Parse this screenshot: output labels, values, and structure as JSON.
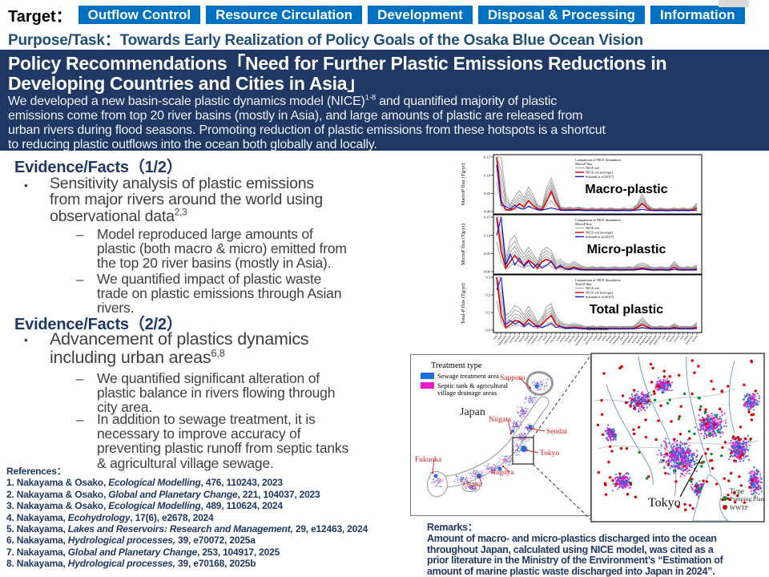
{
  "header": {
    "target_label": "Target：",
    "buttons": [
      "Outflow Control",
      "Resource Circulation",
      "Development",
      "Disposal & Processing",
      "Information"
    ],
    "button_color": "#0070C0",
    "purpose_text": "Purpose/Task：Towards Early Realization of Policy Goals of the Osaka Blue Ocean Vision"
  },
  "banner": {
    "bg_color": "#1F3864",
    "title_lines": [
      "Policy Recommendations「Need for Further Plastic Emissions Reductions in",
      "Developing Countries and Cities in Asia」"
    ],
    "body_lines": [
      {
        "pre": "We developed a new basin-scale plastic dynamics model (NICE)",
        "sup": "1-8",
        "post": " and quantified majority of plastic"
      },
      "emissions come from top 20 river basins (mostly in Asia), and large amounts of plastic are released from",
      "urban rivers during flood seasons. Promoting reduction of plastic emissions from these hotspots is a shortcut",
      "to reducing plastic outflows into the ocean both globally and locally."
    ]
  },
  "evidence1": {
    "heading": "Evidence/Facts（1/2）",
    "bullet": {
      "lines": [
        "Sensitivity analysis of plastic emissions",
        "from major rivers around the world using",
        "observational data"
      ],
      "sup": "2,3"
    },
    "sub1": {
      "lines": [
        "Model reproduced large amounts of",
        "plastic (both macro & micro) emitted from",
        "the top 20 river basins (mostly in Asia)."
      ]
    },
    "sub2": {
      "lines": [
        "We quantified impact of plastic waste",
        "trade on plastic emissions through Asian",
        "rivers."
      ]
    }
  },
  "evidence2": {
    "heading": "Evidence/Facts（2/2）",
    "bullet": {
      "lines": [
        "Advancement of plastics dynamics",
        "including urban areas"
      ],
      "sup": "6,8"
    },
    "sub1": {
      "lines": [
        "We quantified significant alteration of",
        "plastic balance in rivers flowing through",
        "city area."
      ]
    },
    "sub2": {
      "lines": [
        "In addition to sewage treatment, it is",
        "necessary to improve accuracy of",
        "preventing plastic runoff from septic tanks",
        "& agricultural village sewage."
      ]
    }
  },
  "references": {
    "heading": "References：",
    "items": [
      {
        "pre": "1. Nakayama & Osako, ",
        "italic": "Ecological Modelling",
        "post": ", 476, 110243, 2023"
      },
      {
        "pre": "2. Nakayama & Osako, ",
        "italic": "Global and Planetary Change",
        "post": ", 221, 104037, 2023"
      },
      {
        "pre": "3. Nakayama & Osako, ",
        "italic": "Ecological Modelling",
        "post": ", 489, 110624, 2024"
      },
      {
        "pre": "4. Nakayama, ",
        "italic": "Ecohydrology",
        "post": ", 17(6), e2678, 2024"
      },
      {
        "pre": "5. Nakayama, ",
        "italic": "Lakes and Reservoirs: Research and Management,",
        "post": " 29, e12463, 2024"
      },
      {
        "pre": "6. Nakayama, ",
        "italic": "Hydrological processes,",
        "post": " 39, e70072, 2025a"
      },
      {
        "pre": "7. Nakayama, ",
        "italic": "Global and Planetary Change",
        "post": ", 253, 104917, 2025"
      },
      {
        "pre": "8. Nakayama, ",
        "italic": "Hydrological processes,",
        "post": " 39, e70168, 2025b"
      }
    ]
  },
  "remarks": {
    "heading": "Remarks：",
    "body_lines": [
      "Amount of macro- and micro-plastics discharged into the ocean",
      "throughout Japan, calculated using NICE model, was cited as a",
      "prior literature in the Ministry of the Environment’s “Estimation of",
      "amount of marine plastic waste discharged into Japan in 2024”."
    ]
  },
  "map_figure": {
    "treatment_legend": {
      "title": "Treatment type",
      "items": [
        {
          "label_lines": [
            "Sewage treatment area"
          ],
          "color": "#1E6FE0"
        },
        {
          "label_lines": [
            "Septic tank & agricultural",
            "village drainage areas"
          ],
          "color": "#F318C8"
        }
      ]
    },
    "country_label": "Japan",
    "cities": [
      "Sapporo",
      "Niigata",
      "Sendai",
      "Tokyo",
      "Nagoya",
      "Osaka",
      "Fukuoka"
    ],
    "detail_label": "Tokyo",
    "type_legend": {
      "title": "Type",
      "items": [
        {
          "label": "Pumping Plant",
          "color": "#0A8F2A"
        },
        {
          "label": "WWTP",
          "color": "#E00000"
        }
      ]
    }
  },
  "chart_data": [
    {
      "type": "line",
      "panel_label": "Macro-plastic",
      "legend_title": [
        "Comparison of NICE Simulation",
        "MacroP flux"
      ],
      "ylabel": "MacroP flux (Tg/yr)",
      "ylim": [
        0,
        0.15
      ],
      "yticks": [
        "0.00",
        "0.05",
        "0.10",
        "0.15"
      ],
      "x_tick_count": 45,
      "x_tick_labels_legible": false,
      "series": [
        {
          "name": "NICE-val",
          "color": "#909090",
          "role": "ensemble_max",
          "values": [
            0.15,
            0.15,
            0.045,
            0.018,
            0.04,
            0.058,
            0.038,
            0.068,
            0.045,
            0.018,
            0.014,
            0.065,
            0.092,
            0.055,
            0.014,
            0.01,
            0.012,
            0.01,
            0.013,
            0.01,
            0.008,
            0.01,
            0.008,
            0.01,
            0.008,
            0.01,
            0.008,
            0.008,
            0.01,
            0.008,
            0.01,
            0.022,
            0.048,
            0.022,
            0.01,
            0.008,
            0.01,
            0.008,
            0.008,
            0.01,
            0.008,
            0.01,
            0.008,
            0.01,
            0.024
          ]
        },
        {
          "name": "NICE-val (average)",
          "color": "#DD0000",
          "values": [
            0.15,
            0.03,
            0.006,
            0.004,
            0.01,
            0.022,
            0.012,
            0.03,
            0.016,
            0.007,
            0.005,
            0.028,
            0.055,
            0.024,
            0.006,
            0.004,
            0.005,
            0.004,
            0.006,
            0.004,
            0.003,
            0.004,
            0.003,
            0.004,
            0.003,
            0.004,
            0.003,
            0.003,
            0.004,
            0.003,
            0.004,
            0.01,
            0.022,
            0.01,
            0.004,
            0.003,
            0.004,
            0.003,
            0.003,
            0.004,
            0.003,
            0.004,
            0.003,
            0.004,
            0.01
          ]
        },
        {
          "name": "Schmidt et al (2017)",
          "color": "#1414CC",
          "values": [
            0.128,
            0.018,
            0.014,
            0.007,
            0.018,
            0.009,
            0.007,
            0.014,
            0.009,
            0.005,
            0.004,
            0.007,
            0.01,
            0.007,
            0.004,
            0.003,
            0.004,
            0.003,
            0.004,
            0.003,
            0.003,
            0.003,
            0.003,
            0.003,
            0.003,
            0.003,
            0.003,
            0.003,
            0.003,
            0.003,
            0.003,
            0.004,
            0.006,
            0.004,
            0.003,
            0.003,
            0.003,
            0.003,
            0.003,
            0.003,
            0.003,
            0.003,
            0.003,
            0.003,
            0.003
          ]
        }
      ]
    },
    {
      "type": "line",
      "panel_label": "Micro-plastic",
      "legend_title": [
        "Comparison of NICE Simulation",
        "MicroP flux"
      ],
      "ylabel": "MicroP flux (Tg/yr)",
      "ylim": [
        0,
        0.15
      ],
      "yticks": [
        "0.00",
        "0.05",
        "0.10",
        "0.15"
      ],
      "x_tick_count": 45,
      "x_tick_labels_legible": false,
      "series": [
        {
          "name": "NICE-val",
          "color": "#909090",
          "role": "ensemble_max",
          "values": [
            0.15,
            0.15,
            0.038,
            0.085,
            0.1,
            0.068,
            0.048,
            0.068,
            0.048,
            0.028,
            0.058,
            0.068,
            0.058,
            0.028,
            0.034,
            0.024,
            0.02,
            0.028,
            0.02,
            0.014,
            0.012,
            0.014,
            0.012,
            0.014,
            0.012,
            0.012,
            0.014,
            0.012,
            0.012,
            0.014,
            0.012,
            0.02,
            0.024,
            0.02,
            0.012,
            0.012,
            0.014,
            0.012,
            0.012,
            0.028,
            0.014,
            0.012,
            0.014,
            0.012,
            0.02
          ]
        },
        {
          "name": "NICE-val (average)",
          "color": "#DD0000",
          "values": [
            0.15,
            0.055,
            0.01,
            0.028,
            0.045,
            0.028,
            0.018,
            0.032,
            0.022,
            0.01,
            0.028,
            0.034,
            0.028,
            0.01,
            0.014,
            0.009,
            0.008,
            0.012,
            0.008,
            0.006,
            0.005,
            0.006,
            0.005,
            0.006,
            0.005,
            0.005,
            0.006,
            0.005,
            0.005,
            0.006,
            0.005,
            0.008,
            0.01,
            0.008,
            0.005,
            0.005,
            0.006,
            0.005,
            0.005,
            0.012,
            0.006,
            0.005,
            0.006,
            0.005,
            0.008
          ]
        },
        {
          "name": "Schmidt et al (2017)",
          "color": "#1414CC",
          "values": [
            0.1,
            0.5,
            0.018,
            0.048,
            0.018,
            0.038,
            0.014,
            0.028,
            0.01,
            0.022,
            0.01,
            0.018,
            0.028,
            0.008,
            0.018,
            0.008,
            0.006,
            0.01,
            0.006,
            0.005,
            0.005,
            0.005,
            0.005,
            0.005,
            0.005,
            0.005,
            0.005,
            0.005,
            0.005,
            0.005,
            0.005,
            0.006,
            0.008,
            0.006,
            0.005,
            0.005,
            0.005,
            0.005,
            0.005,
            0.006,
            0.005,
            0.005,
            0.005,
            0.005,
            0.005
          ]
        }
      ]
    },
    {
      "type": "line",
      "panel_label": "Total plastic",
      "legend_title": [
        "Comparison of NICE Simulation",
        "Total-P flux"
      ],
      "ylabel": "Total-P flux (Tg/yr)",
      "xlabel": "River name",
      "ylim": [
        0,
        0.3
      ],
      "yticks": [
        "0.0",
        "0.1",
        "0.2",
        "0.3"
      ],
      "x_tick_count": 45,
      "x_tick_labels_legible": false,
      "series": [
        {
          "name": "NICE-val",
          "color": "#909090",
          "role": "ensemble_max",
          "values": [
            0.3,
            0.3,
            0.083,
            0.103,
            0.14,
            0.126,
            0.086,
            0.136,
            0.093,
            0.046,
            0.072,
            0.133,
            0.15,
            0.083,
            0.048,
            0.034,
            0.032,
            0.038,
            0.033,
            0.024,
            0.02,
            0.024,
            0.02,
            0.024,
            0.02,
            0.022,
            0.022,
            0.02,
            0.022,
            0.022,
            0.022,
            0.042,
            0.072,
            0.042,
            0.022,
            0.02,
            0.024,
            0.02,
            0.02,
            0.038,
            0.022,
            0.022,
            0.022,
            0.022,
            0.044
          ]
        },
        {
          "name": "NICE-val (average)",
          "color": "#DD0000",
          "values": [
            0.3,
            0.085,
            0.016,
            0.032,
            0.055,
            0.05,
            0.03,
            0.062,
            0.038,
            0.017,
            0.033,
            0.062,
            0.083,
            0.034,
            0.02,
            0.013,
            0.013,
            0.016,
            0.014,
            0.01,
            0.008,
            0.01,
            0.008,
            0.01,
            0.008,
            0.009,
            0.009,
            0.008,
            0.009,
            0.009,
            0.009,
            0.018,
            0.032,
            0.018,
            0.009,
            0.008,
            0.01,
            0.008,
            0.008,
            0.016,
            0.009,
            0.009,
            0.009,
            0.009,
            0.018
          ]
        },
        {
          "name": "Schmidt et al (2017)",
          "color": "#1414CC",
          "values": [
            0.228,
            0.518,
            0.032,
            0.055,
            0.036,
            0.047,
            0.021,
            0.042,
            0.019,
            0.027,
            0.014,
            0.025,
            0.038,
            0.015,
            0.022,
            0.011,
            0.01,
            0.013,
            0.01,
            0.008,
            0.008,
            0.008,
            0.008,
            0.008,
            0.008,
            0.008,
            0.008,
            0.008,
            0.008,
            0.008,
            0.008,
            0.01,
            0.014,
            0.01,
            0.008,
            0.008,
            0.008,
            0.008,
            0.008,
            0.009,
            0.008,
            0.008,
            0.008,
            0.008,
            0.008
          ]
        }
      ]
    }
  ]
}
